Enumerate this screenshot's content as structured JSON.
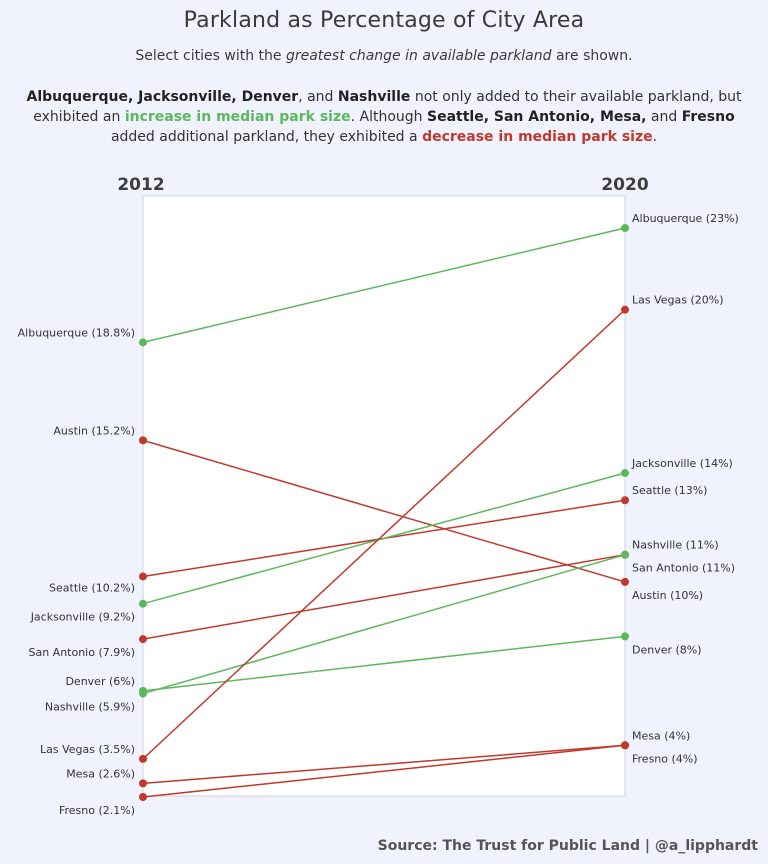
{
  "title": "Parkland as Percentage of City Area",
  "subtitle": {
    "before": "Select cities with the ",
    "emphasis": "greatest change in available parkland",
    "after": " are shown."
  },
  "description": {
    "p1_cities": "Albuquerque, Jacksonville, Denver",
    "p1_and": ", and ",
    "p1_last": "Nashville",
    "p1_text": " not only added to their available parkland, but exhibited an ",
    "increase_phrase": "increase in median park size",
    "p2_text": ". Although ",
    "p2_cities": "Seattle, San Antonio, Mesa,",
    "p2_and": " and ",
    "p2_last": "Fresno",
    "p2_text2": " added additional parkland, they exhibited a ",
    "decrease_phrase": "decrease in median park size",
    "end": "."
  },
  "source": "Source: The Trust for Public Land | @a_lipphardt",
  "colors": {
    "increase": "#5cb85c",
    "decrease": "#c0392b"
  },
  "chart_data": {
    "type": "line",
    "x": [
      "2012",
      "2020"
    ],
    "ylim": [
      2.1,
      23
    ],
    "series": [
      {
        "name": "Albuquerque",
        "values": [
          18.8,
          23
        ],
        "group": "increase",
        "labels": [
          "Albuquerque (18.8%)",
          "Albuquerque (23%)"
        ]
      },
      {
        "name": "Austin",
        "values": [
          15.2,
          10
        ],
        "group": "decrease",
        "labels": [
          "Austin (15.2%)",
          "Austin (10%)"
        ]
      },
      {
        "name": "Seattle",
        "values": [
          10.2,
          13
        ],
        "group": "decrease",
        "labels": [
          "Seattle (10.2%)",
          "Seattle (13%)"
        ]
      },
      {
        "name": "Jacksonville",
        "values": [
          9.2,
          14
        ],
        "group": "increase",
        "labels": [
          "Jacksonville (9.2%)",
          "Jacksonville (14%)"
        ]
      },
      {
        "name": "San Antonio",
        "values": [
          7.9,
          11
        ],
        "group": "decrease",
        "labels": [
          "San Antonio (7.9%)",
          "San Antonio (11%)"
        ]
      },
      {
        "name": "Denver",
        "values": [
          6,
          8
        ],
        "group": "increase",
        "labels": [
          "Denver (6%)",
          "Denver (8%)"
        ]
      },
      {
        "name": "Nashville",
        "values": [
          5.9,
          11
        ],
        "group": "increase",
        "labels": [
          "Nashville (5.9%)",
          "Nashville (11%)"
        ]
      },
      {
        "name": "Las Vegas",
        "values": [
          3.5,
          20
        ],
        "group": "decrease",
        "labels": [
          "Las Vegas (3.5%)",
          "Las Vegas (20%)"
        ]
      },
      {
        "name": "Mesa",
        "values": [
          2.6,
          4
        ],
        "group": "decrease",
        "labels": [
          "Mesa (2.6%)",
          "Mesa (4%)"
        ]
      },
      {
        "name": "Fresno",
        "values": [
          2.1,
          4
        ],
        "group": "decrease",
        "labels": [
          "Fresno (2.1%)",
          "Fresno (4%)"
        ]
      }
    ]
  }
}
